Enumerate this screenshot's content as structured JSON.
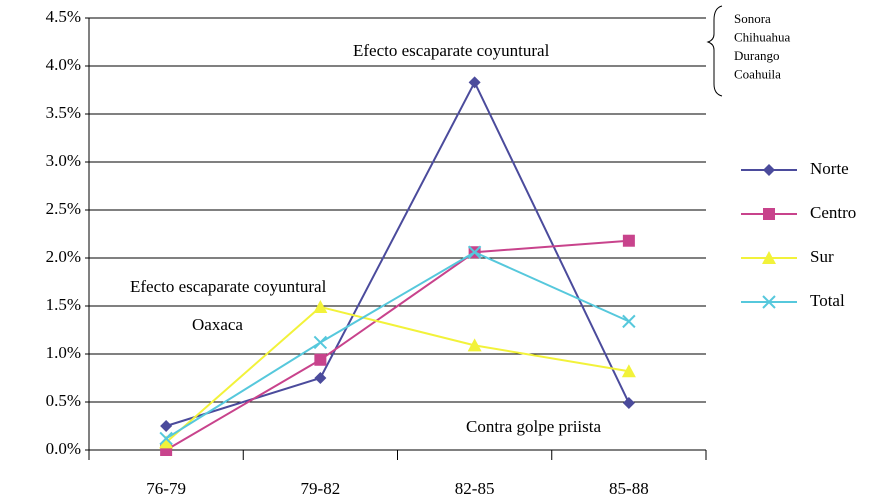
{
  "chart_data": {
    "type": "line",
    "categories": [
      "76-79",
      "79-82",
      "82-85",
      "85-88"
    ],
    "series": [
      {
        "name": "Norte",
        "color": "#4b4b9c",
        "marker": "diamond",
        "values": [
          0.25,
          0.75,
          3.83,
          0.49
        ]
      },
      {
        "name": "Centro",
        "color": "#c8438c",
        "marker": "square",
        "values": [
          0.0,
          0.94,
          2.06,
          2.18
        ]
      },
      {
        "name": "Sur",
        "color": "#f2f23a",
        "marker": "triangle",
        "values": [
          0.08,
          1.49,
          1.09,
          0.82
        ]
      },
      {
        "name": "Total",
        "color": "#56c8dc",
        "marker": "x",
        "values": [
          0.12,
          1.12,
          2.06,
          1.34
        ]
      }
    ],
    "ylim": [
      0,
      4.5
    ],
    "yticks": [
      {
        "value": 0,
        "label": "0.0%"
      },
      {
        "value": 0.5,
        "label": "0.5%"
      },
      {
        "value": 1,
        "label": "1.0%"
      },
      {
        "value": 1.5,
        "label": "1.5%"
      },
      {
        "value": 2,
        "label": "2.0%"
      },
      {
        "value": 2.5,
        "label": "2.5%"
      },
      {
        "value": 3,
        "label": "3.0%"
      },
      {
        "value": 3.5,
        "label": "3.5%"
      },
      {
        "value": 4,
        "label": "4.0%"
      },
      {
        "value": 4.5,
        "label": "4.5%"
      }
    ],
    "grid": true,
    "legend": "right",
    "annotations": [
      "Efecto escaparate coyuntural",
      "Efecto escaparate coyuntural",
      "Oaxaca",
      "Contra golpe priista"
    ],
    "bracket_labels": [
      "Sonora",
      "Chihuahua",
      "Durango",
      "Coahuila"
    ]
  }
}
